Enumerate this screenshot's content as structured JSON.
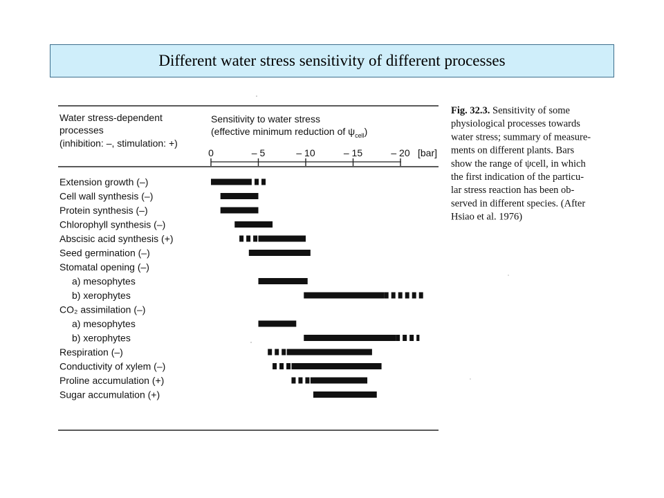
{
  "slide": {
    "title": "Different water stress sensitivity of different processes"
  },
  "chart_data": {
    "type": "range-bar",
    "header_left": [
      "Water stress-dependent",
      "processes",
      "(inhibition: –, stimulation: +)"
    ],
    "header_right": [
      "Sensitivity to water stress",
      "(effective minimum reduction of ψ",
      "cell",
      ")"
    ],
    "axis": {
      "ticks": [
        0,
        -5,
        -10,
        -15,
        -20
      ],
      "tick_labels": [
        "0",
        "– 5",
        "– 10",
        "– 15",
        "– 20"
      ],
      "unit": "[bar]",
      "range": [
        0,
        -23
      ]
    },
    "rows": [
      {
        "label": "Extension growth (–)",
        "indent": false,
        "solid": [
          0,
          -4.3
        ],
        "dashed": [
          -4.6,
          -5.9
        ]
      },
      {
        "label": "Cell wall synthesis (–)",
        "indent": false,
        "solid": [
          -1.0,
          -5.0
        ],
        "dashed": null
      },
      {
        "label": "Protein synthesis (–)",
        "indent": false,
        "solid": [
          -1.0,
          -5.0
        ],
        "dashed": null
      },
      {
        "label": "Chlorophyll synthesis (–)",
        "indent": false,
        "solid": [
          -2.5,
          -6.5
        ],
        "dashed": null
      },
      {
        "label": "Abscisic acid synthesis (+)",
        "indent": false,
        "solid": [
          -5.0,
          -10.0
        ],
        "dashed": [
          -3.0,
          -5.0
        ]
      },
      {
        "label": "Seed germination (–)",
        "indent": false,
        "solid": [
          -4.0,
          -10.5
        ],
        "dashed": null
      },
      {
        "label": "Stomatal opening (–)",
        "indent": false,
        "solid": null,
        "dashed": null
      },
      {
        "label": "a) mesophytes",
        "indent": true,
        "solid": [
          -5.0,
          -10.2
        ],
        "dashed": null
      },
      {
        "label": "b) xerophytes",
        "indent": true,
        "solid": [
          -9.8,
          -18.3
        ],
        "dashed": [
          -18.3,
          -22.5
        ]
      },
      {
        "label": "CO₂ assimilation (–)",
        "indent": false,
        "solid": null,
        "dashed": null
      },
      {
        "label": "a) mesophytes",
        "indent": true,
        "solid": [
          -5.0,
          -9.0
        ],
        "dashed": null
      },
      {
        "label": "b) xerophytes",
        "indent": true,
        "solid": [
          -9.8,
          -19.5
        ],
        "dashed": [
          -19.5,
          -22.0
        ]
      },
      {
        "label": "Respiration (–)",
        "indent": false,
        "solid": [
          -8.0,
          -17.0
        ],
        "dashed": [
          -6.0,
          -8.0
        ]
      },
      {
        "label": "Conductivity of xylem (–)",
        "indent": false,
        "solid": [
          -8.5,
          -18.0
        ],
        "dashed": [
          -6.5,
          -8.5
        ]
      },
      {
        "label": "Proline accumulation (+)",
        "indent": false,
        "solid": [
          -10.5,
          -16.5
        ],
        "dashed": [
          -8.5,
          -10.5
        ]
      },
      {
        "label": "Sugar accumulation (+)",
        "indent": false,
        "solid": [
          -10.8,
          -17.5
        ],
        "dashed": null
      }
    ]
  },
  "caption": {
    "lines": [
      {
        "pre": "Fig. 32.3.",
        "text": " Sensitivity of some"
      },
      {
        "pre": "",
        "text": "physiological processes towards"
      },
      {
        "pre": "",
        "text": "water stress; summary of measure-"
      },
      {
        "pre": "",
        "text": "ments on different plants. Bars"
      },
      {
        "pre": "",
        "text": "show the range of ψcell, in which"
      },
      {
        "pre": "",
        "text": "the first indication of the particu-"
      },
      {
        "pre": "",
        "text": "lar stress reaction has been ob-"
      },
      {
        "pre": "",
        "text": "served in different species. (After"
      },
      {
        "pre": "",
        "text": "Hsiao et al. 1976)"
      }
    ]
  }
}
